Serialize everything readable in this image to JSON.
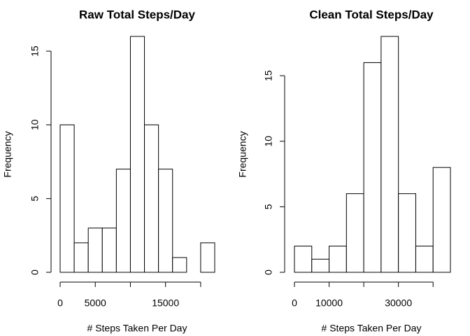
{
  "chart_data": [
    {
      "type": "histogram",
      "title": "Raw Total Steps/Day",
      "xlabel": "# Steps Taken Per Day",
      "ylabel": "Frequency",
      "bins": [
        0,
        2000,
        4000,
        6000,
        8000,
        10000,
        12000,
        14000,
        16000,
        18000,
        20000,
        22000
      ],
      "values": [
        10,
        2,
        3,
        3,
        7,
        16,
        10,
        7,
        1,
        0,
        2
      ],
      "xlim": [
        0,
        22000
      ],
      "ylim": [
        0,
        16
      ],
      "xticks": [
        0,
        5000,
        {
          "value": 10000,
          "label": null
        },
        15000,
        {
          "value": 20000,
          "label": null
        }
      ],
      "yticks": [
        0,
        5,
        10,
        15
      ],
      "color": "#ffffff",
      "edgecolor": "#000000"
    },
    {
      "type": "histogram",
      "title": "Clean Total Steps/Day",
      "xlabel": "# Steps Taken Per Day",
      "ylabel": "Frequency",
      "bins": [
        0,
        5000,
        10000,
        15000,
        20000,
        25000,
        30000,
        35000,
        40000,
        45000
      ],
      "values": [
        2,
        1,
        2,
        6,
        16,
        18,
        6,
        2,
        8
      ],
      "xlim": [
        0,
        45000
      ],
      "ylim": [
        0,
        18
      ],
      "xticks": [
        0,
        10000,
        {
          "value": 20000,
          "label": null
        },
        30000,
        {
          "value": 40000,
          "label": null
        }
      ],
      "yticks": [
        0,
        5,
        10,
        15
      ],
      "color": "#ffffff",
      "edgecolor": "#000000"
    }
  ]
}
